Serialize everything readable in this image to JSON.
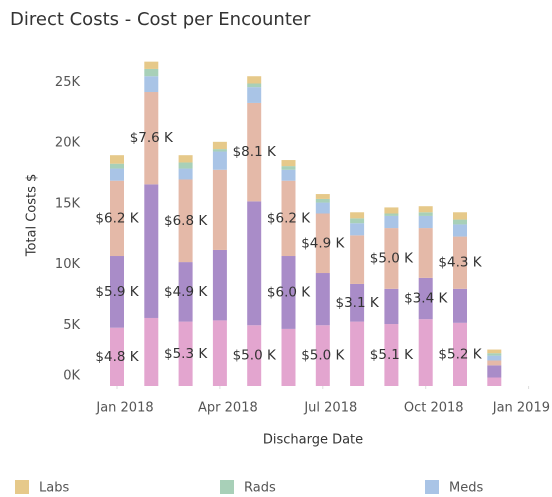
{
  "chart_data": {
    "type": "stacked_bar",
    "title": "Direct Costs - Cost per Encounter",
    "x_label": "Discharge Date",
    "y_label": "Total Costs $",
    "x": [
      "2018-01",
      "2018-02",
      "2018-03",
      "2018-04",
      "2018-05",
      "2018-06",
      "2018-07",
      "2018-08",
      "2018-09",
      "2018-10",
      "2018-11",
      "2018-12"
    ],
    "xticks": [
      {
        "value": "2018-01",
        "label": "Jan 2018"
      },
      {
        "value": "2018-04",
        "label": "Apr 2018"
      },
      {
        "value": "2018-07",
        "label": "Jul 2018"
      },
      {
        "value": "2018-10",
        "label": "Oct 2018"
      },
      {
        "value": "2019-01",
        "label": "Jan 2019"
      }
    ],
    "ylim": [
      0,
      27000
    ],
    "yticks": [
      {
        "value": 0,
        "label": "0K"
      },
      {
        "value": 5000,
        "label": "5K"
      },
      {
        "value": 10000,
        "label": "10K"
      },
      {
        "value": 15000,
        "label": "15K"
      },
      {
        "value": 20000,
        "label": "20K"
      },
      {
        "value": 25000,
        "label": "25K"
      }
    ],
    "series": [
      {
        "color": "#e3a5cf",
        "values": [
          4800,
          5600,
          5300,
          5400,
          5000,
          4700,
          5000,
          5300,
          5100,
          5500,
          5200,
          700
        ],
        "value_labels": [
          "$4.8 K",
          null,
          "$5.3 K",
          null,
          "$5.0 K",
          null,
          "$5.0 K",
          null,
          "$5.1 K",
          null,
          "$5.2 K",
          null
        ]
      },
      {
        "color": "#a98cc8",
        "values": [
          5900,
          11000,
          4900,
          5800,
          10200,
          6000,
          4300,
          3100,
          2900,
          3400,
          2800,
          1000
        ],
        "value_labels": [
          "$5.9 K",
          null,
          "$4.9 K",
          null,
          null,
          "$6.0 K",
          null,
          "$3.1 K",
          null,
          "$3.4 K",
          null,
          null
        ]
      },
      {
        "color": "#e4b9a8",
        "values": [
          6200,
          7600,
          6800,
          6600,
          8100,
          6200,
          4900,
          4000,
          5000,
          4100,
          4300,
          400
        ],
        "value_labels": [
          "$6.2 K",
          "$7.6 K",
          "$6.8 K",
          null,
          "$8.1 K",
          "$6.2 K",
          "$4.9 K",
          null,
          "$5.0 K",
          null,
          "$4.3 K",
          null
        ]
      },
      {
        "name": "Meds",
        "color": "#a9c4e6",
        "values": [
          1000,
          1300,
          900,
          1500,
          1300,
          900,
          900,
          1000,
          1000,
          1000,
          1000,
          400
        ]
      },
      {
        "name": "Rads",
        "color": "#a8d0b8",
        "values": [
          400,
          600,
          500,
          200,
          300,
          300,
          300,
          400,
          200,
          300,
          400,
          200
        ]
      },
      {
        "name": "Labs",
        "color": "#e6c98a",
        "values": [
          700,
          600,
          600,
          600,
          600,
          500,
          400,
          500,
          500,
          500,
          600,
          300
        ]
      }
    ]
  }
}
